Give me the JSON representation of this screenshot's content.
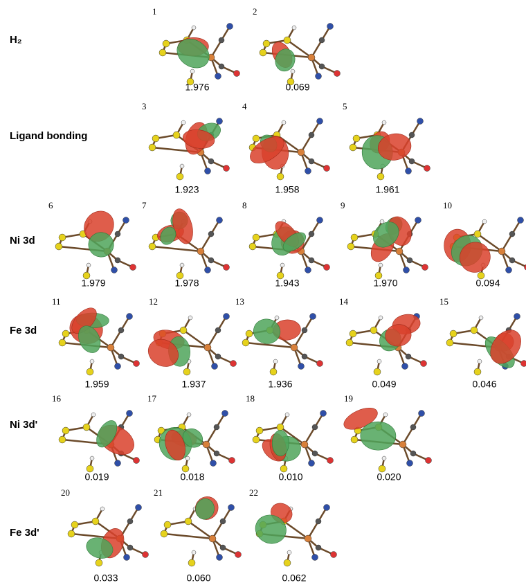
{
  "figure": {
    "rows": [
      {
        "label": "H₂",
        "orbitals": [
          {
            "index": "1",
            "occupation": "1.976"
          },
          {
            "index": "2",
            "occupation": "0.069"
          }
        ]
      },
      {
        "label": "Ligand bonding",
        "orbitals": [
          {
            "index": "3",
            "occupation": "1.923"
          },
          {
            "index": "4",
            "occupation": "1.958"
          },
          {
            "index": "5",
            "occupation": "1.961"
          }
        ]
      },
      {
        "label": "Ni 3d",
        "orbitals": [
          {
            "index": "6",
            "occupation": "1.979"
          },
          {
            "index": "7",
            "occupation": "1.978"
          },
          {
            "index": "8",
            "occupation": "1.943"
          },
          {
            "index": "9",
            "occupation": "1.970"
          },
          {
            "index": "10",
            "occupation": "0.094"
          }
        ]
      },
      {
        "label": "Fe 3d",
        "orbitals": [
          {
            "index": "11",
            "occupation": "1.959"
          },
          {
            "index": "12",
            "occupation": "1.937"
          },
          {
            "index": "13",
            "occupation": "1.936"
          },
          {
            "index": "14",
            "occupation": "0.049"
          },
          {
            "index": "15",
            "occupation": "0.046"
          }
        ]
      },
      {
        "label": "Ni 3d'",
        "orbitals": [
          {
            "index": "16",
            "occupation": "0.019"
          },
          {
            "index": "17",
            "occupation": "0.018"
          },
          {
            "index": "18",
            "occupation": "0.010"
          },
          {
            "index": "19",
            "occupation": "0.020"
          }
        ]
      },
      {
        "label": "Fe 3d'",
        "orbitals": [
          {
            "index": "20",
            "occupation": "0.033"
          },
          {
            "index": "21",
            "occupation": "0.060"
          },
          {
            "index": "22",
            "occupation": "0.062"
          }
        ]
      }
    ]
  }
}
